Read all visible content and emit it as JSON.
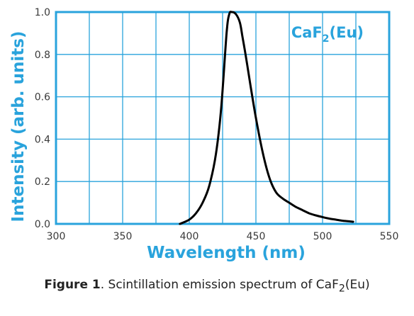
{
  "chart_data": {
    "type": "line",
    "title": "",
    "inset_label": {
      "prefix": "CaF",
      "subscript": "2",
      "suffix": "(Eu)"
    },
    "xlabel": "Wavelength (nm)",
    "ylabel": "Intensity (arb. units)",
    "xlim": [
      300,
      550
    ],
    "ylim": [
      0.0,
      1.0
    ],
    "x_ticks": [
      "300",
      "350",
      "400",
      "450",
      "500",
      "550"
    ],
    "y_ticks": [
      "0.0",
      "0.2",
      "0.4",
      "0.6",
      "0.8",
      "1.0"
    ],
    "grid": true,
    "axis_color": "#29a3dc",
    "line_color": "#000000",
    "series": [
      {
        "x": [
          393,
          400,
          405,
          410,
          415,
          420,
          424,
          428,
          430,
          432,
          435,
          438,
          440,
          443,
          446,
          450,
          455,
          460,
          465,
          470,
          475,
          480,
          485,
          490,
          495,
          500,
          505,
          510,
          515,
          520,
          523
        ],
        "y": [
          0.0,
          0.02,
          0.05,
          0.1,
          0.18,
          0.33,
          0.55,
          0.9,
          0.99,
          1.0,
          0.99,
          0.95,
          0.88,
          0.77,
          0.65,
          0.5,
          0.34,
          0.22,
          0.15,
          0.12,
          0.1,
          0.08,
          0.065,
          0.05,
          0.04,
          0.032,
          0.025,
          0.02,
          0.015,
          0.012,
          0.01
        ]
      }
    ]
  },
  "caption": {
    "figure_label": "Figure 1",
    "text_before": ". Scintillation emission spectrum of CaF",
    "subscript": "2",
    "text_after": "(Eu)"
  }
}
